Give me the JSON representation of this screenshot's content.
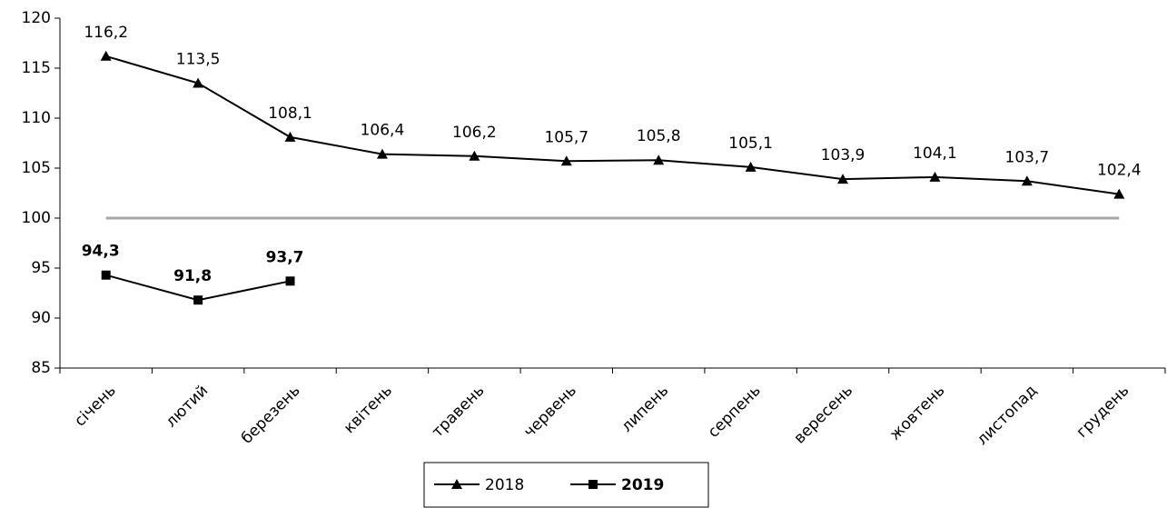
{
  "chart_data": {
    "type": "line",
    "categories": [
      "січень",
      "лютий",
      "березень",
      "квітень",
      "травень",
      "червень",
      "липень",
      "серпень",
      "вересень",
      "жовтень",
      "листопад",
      "грудень"
    ],
    "series": [
      {
        "name": "2018",
        "color": "#000000",
        "marker": "triangle",
        "values": [
          116.2,
          113.5,
          108.1,
          106.4,
          106.2,
          105.7,
          105.8,
          105.1,
          103.9,
          104.1,
          103.7,
          102.4
        ],
        "value_labels": [
          "116,2",
          "113,5",
          "108,1",
          "106,4",
          "106,2",
          "105,7",
          "105,8",
          "105,1",
          "103,9",
          "104,1",
          "103,7",
          "102,4"
        ]
      },
      {
        "name": "2019",
        "color": "#000000",
        "marker": "square",
        "bold": true,
        "values": [
          94.3,
          91.8,
          93.7,
          null,
          null,
          null,
          null,
          null,
          null,
          null,
          null,
          null
        ],
        "value_labels": [
          "94,3",
          "91,8",
          "93,7",
          null,
          null,
          null,
          null,
          null,
          null,
          null,
          null,
          null
        ]
      }
    ],
    "reference_line": {
      "value": 100,
      "color": "#a6a6a6"
    },
    "ylim": [
      85,
      120
    ],
    "yticks": [
      85,
      90,
      95,
      100,
      105,
      110,
      115,
      120
    ],
    "legend": "bottom"
  }
}
